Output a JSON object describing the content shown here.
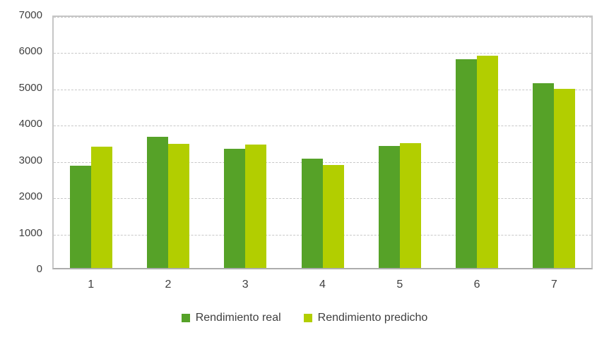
{
  "chart_data": {
    "type": "bar",
    "title": "",
    "xlabel": "",
    "ylabel": "",
    "categories": [
      "1",
      "2",
      "3",
      "4",
      "5",
      "6",
      "7"
    ],
    "series": [
      {
        "name": "Rendimiento real",
        "color": "#56A228",
        "values": [
          2820,
          3620,
          3290,
          3010,
          3360,
          5760,
          5100
        ]
      },
      {
        "name": "Rendimiento predicho",
        "color": "#B2CE00",
        "values": [
          3340,
          3430,
          3400,
          2830,
          3440,
          5850,
          4940
        ]
      }
    ],
    "ylim": [
      0,
      7000
    ],
    "yticks": [
      0,
      1000,
      2000,
      3000,
      4000,
      5000,
      6000,
      7000
    ],
    "ytick_labels": [
      "0",
      "1000",
      "2000",
      "3000",
      "4000",
      "5000",
      "6000",
      "7000"
    ],
    "grid": "horizontal",
    "gridline_style": "dashed",
    "legend_position": "bottom"
  },
  "colors": {
    "gridline": "#C8C8C8",
    "plot_border": "#C6C6C6",
    "axis_line": "#ADADAD",
    "text": "#3F3F3F",
    "background": "#FFFFFF"
  }
}
